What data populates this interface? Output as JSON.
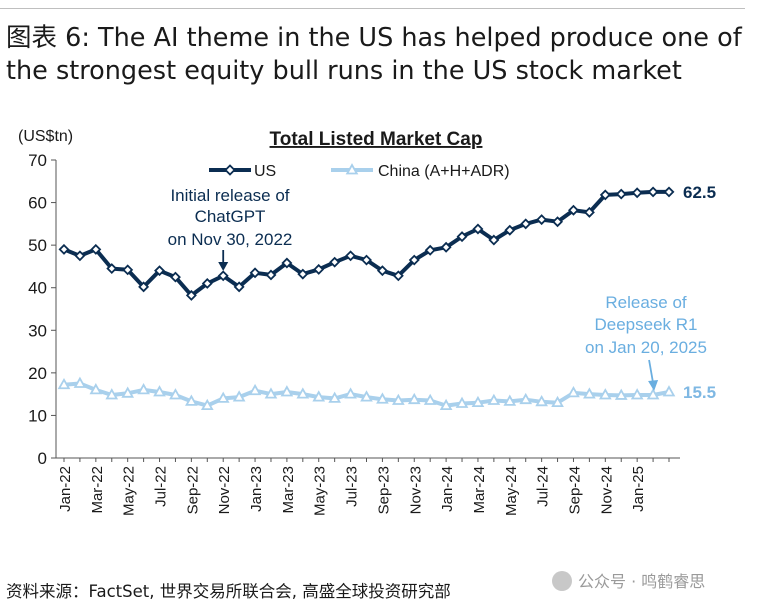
{
  "heading": {
    "line1": "图表 6: The AI theme in the US has helped produce one of",
    "line2": "the strongest equity bull runs in the US stock market"
  },
  "source": "资料来源：FactSet, 世界交易所联合会, 高盛全球投资研究部",
  "watermark": "公众号 · 鸣鹤睿思",
  "chart_data": {
    "type": "line",
    "title": "Total Listed Market Cap",
    "unit_label": "(US$tn)",
    "ylim": [
      0,
      70
    ],
    "yticks": [
      0,
      10,
      20,
      30,
      40,
      50,
      60,
      70
    ],
    "x_labels": [
      "Jan-22",
      "Mar-22",
      "May-22",
      "Jul-22",
      "Sep-22",
      "Nov-22",
      "Jan-23",
      "Mar-23",
      "May-23",
      "Jul-23",
      "Sep-23",
      "Nov-23",
      "Jan-24",
      "Mar-24",
      "May-24",
      "Jul-24",
      "Sep-24",
      "Nov-24",
      "Jan-25"
    ],
    "x": [
      "Jan-22",
      "Feb-22",
      "Mar-22",
      "Apr-22",
      "May-22",
      "Jun-22",
      "Jul-22",
      "Aug-22",
      "Sep-22",
      "Oct-22",
      "Nov-22",
      "Dec-22",
      "Jan-23",
      "Feb-23",
      "Mar-23",
      "Apr-23",
      "May-23",
      "Jun-23",
      "Jul-23",
      "Aug-23",
      "Sep-23",
      "Oct-23",
      "Nov-23",
      "Dec-23",
      "Jan-24",
      "Feb-24",
      "Mar-24",
      "Apr-24",
      "May-24",
      "Jun-24",
      "Jul-24",
      "Aug-24",
      "Sep-24",
      "Oct-24",
      "Nov-24",
      "Dec-24",
      "Jan-25",
      "Feb-25",
      "Mar-25"
    ],
    "legend_position": "top-center",
    "grid": false,
    "series": [
      {
        "name": "US",
        "color": "#0b2d51",
        "values": [
          49.0,
          47.5,
          49.0,
          44.5,
          44.2,
          40.2,
          44.0,
          42.5,
          38.2,
          41.0,
          42.8,
          40.2,
          43.5,
          43.0,
          45.8,
          43.2,
          44.3,
          46.0,
          47.5,
          46.5,
          44.0,
          42.8,
          46.5,
          48.8,
          49.5,
          52.0,
          53.8,
          51.2,
          53.5,
          55.0,
          56.0,
          55.5,
          58.2,
          57.7,
          61.8,
          62.0,
          62.3,
          62.5,
          62.5
        ],
        "end_label": "62.5"
      },
      {
        "name": "China (A+H+ADR)",
        "color": "#a9d0ec",
        "values": [
          17.2,
          17.5,
          16.0,
          14.8,
          15.2,
          16.0,
          15.5,
          14.8,
          13.3,
          12.3,
          14.0,
          14.3,
          15.8,
          15.0,
          15.5,
          15.0,
          14.3,
          14.0,
          15.0,
          14.3,
          13.8,
          13.5,
          13.7,
          13.5,
          12.3,
          12.8,
          13.0,
          13.5,
          13.3,
          13.7,
          13.2,
          13.0,
          15.3,
          15.0,
          14.8,
          14.7,
          14.8,
          14.8,
          15.5
        ],
        "end_label": "15.5"
      }
    ],
    "annotations": [
      {
        "lines": [
          "Initial release of",
          "ChatGPT",
          "on Nov 30, 2022"
        ],
        "target": "Nov-22",
        "series": 0,
        "color": "#0b2d51"
      },
      {
        "lines": [
          "Release of",
          "Deepseek R1",
          "on Jan 20, 2025"
        ],
        "target": "Feb-25",
        "series": 1,
        "color": "#6aaee0"
      }
    ]
  }
}
